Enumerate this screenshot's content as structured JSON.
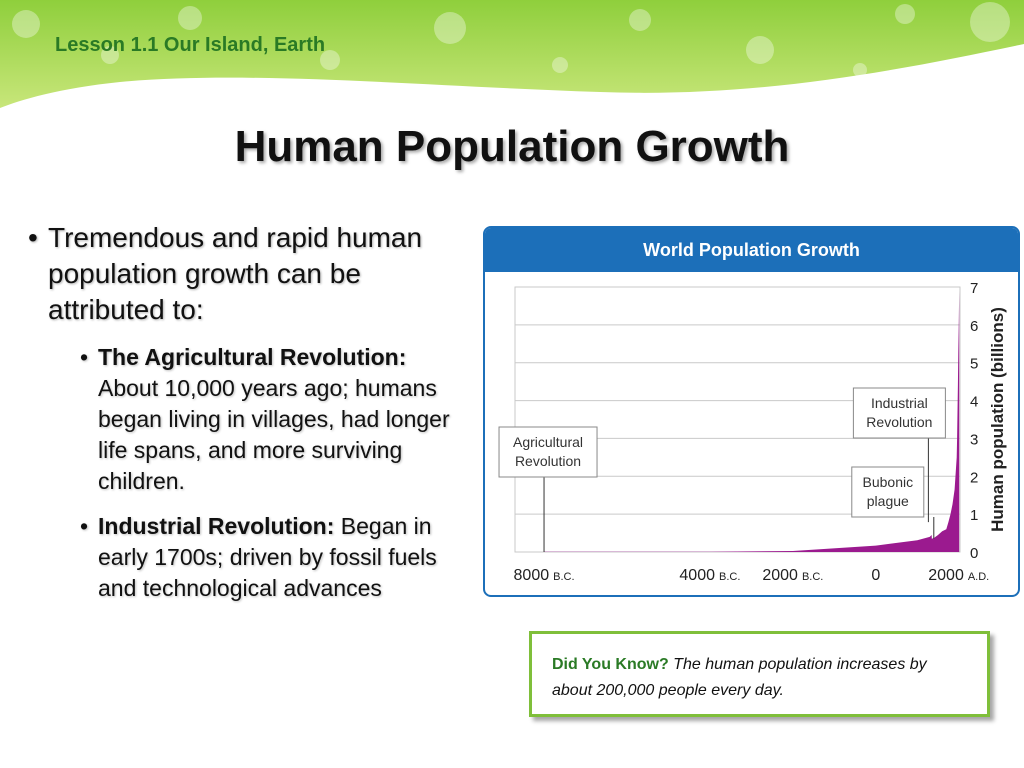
{
  "header": {
    "lesson": "Lesson 1.1 Our Island, Earth"
  },
  "slide": {
    "title": "Human Population Growth"
  },
  "bullets": {
    "main": "Tremendous and rapid human population growth can be attributed to:",
    "items": [
      {
        "label": "The Agricultural Revolution:",
        "text": " About 10,000 years ago; humans began living in villages, had longer life spans, and more surviving children."
      },
      {
        "label": "Industrial Revolution:",
        "text": " Began in early 1700s; driven by fossil fuels and technological advances"
      }
    ]
  },
  "did_you_know": {
    "label": "Did You Know?",
    "text": " The human population increases by about 200,000 people every day."
  },
  "colors": {
    "accent_green": "#2a7a25",
    "chart_blue": "#1c6fb9",
    "series": "#9b1a8f",
    "box_border": "#7fbf3a"
  },
  "chart_data": {
    "type": "area",
    "title": "World Population Growth",
    "ylabel": "Human population (billions)",
    "ylim": [
      0,
      7
    ],
    "yticks": [
      "0",
      "1",
      "2",
      "3",
      "4",
      "5",
      "6",
      "7"
    ],
    "xticks": [
      {
        "value": "8000",
        "era": "B.C."
      },
      {
        "value": "4000",
        "era": "B.C."
      },
      {
        "value": "2000",
        "era": "B.C."
      },
      {
        "value": "0",
        "era": ""
      },
      {
        "value": "2000",
        "era": "A.D."
      }
    ],
    "series": [
      {
        "x": [
          -8000,
          -4000,
          -2000,
          0,
          1000,
          1300,
          1347,
          1351,
          1400,
          1500,
          1600,
          1700,
          1750,
          1800,
          1850,
          1900,
          1950,
          1960,
          1970,
          1980,
          1990,
          2000,
          2010
        ],
        "y": [
          0.005,
          0.007,
          0.027,
          0.17,
          0.31,
          0.4,
          0.45,
          0.35,
          0.37,
          0.45,
          0.55,
          0.6,
          0.79,
          1.0,
          1.26,
          1.65,
          2.5,
          3.0,
          3.7,
          4.4,
          5.3,
          6.1,
          6.9
        ]
      }
    ],
    "annotations": [
      {
        "text": "Agricultural\nRevolution",
        "x": -8000
      },
      {
        "text": "Industrial\nRevolution",
        "x": 1750
      },
      {
        "text": "Bubonic\nplague",
        "x": 1350
      }
    ],
    "grid": true
  }
}
